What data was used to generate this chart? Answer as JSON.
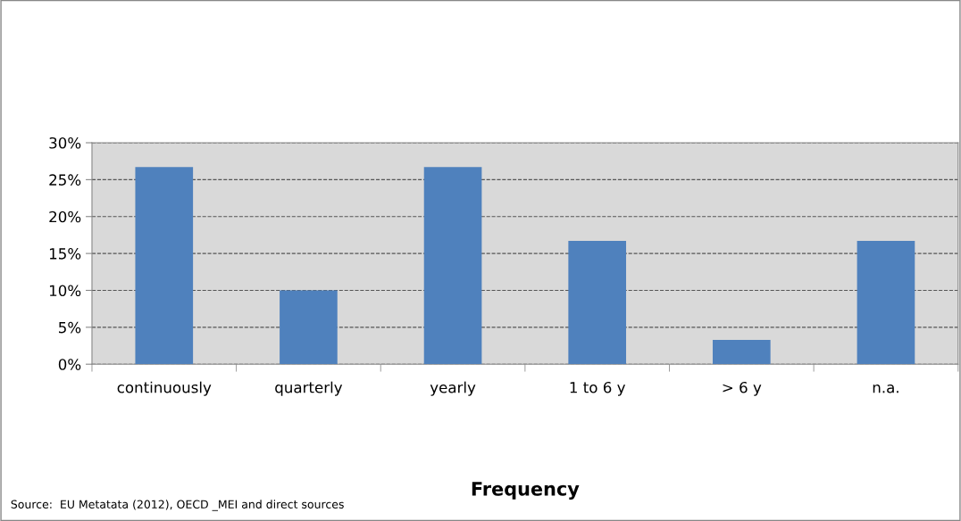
{
  "chart_data": {
    "type": "bar",
    "xlabel": "Frequency",
    "categories": [
      "continuously",
      "quarterly",
      "yearly",
      "1 to 6 y",
      "> 6 y",
      "n.a."
    ],
    "values": [
      26.7,
      10,
      26.7,
      16.7,
      3.3,
      16.7
    ],
    "color": "#4f81bd",
    "ylim": [
      0,
      30
    ],
    "yticks": [
      {
        "value": 0,
        "label": "0%"
      },
      {
        "value": 5,
        "label": "5%"
      },
      {
        "value": 10,
        "label": "10%"
      },
      {
        "value": 15,
        "label": "15%"
      },
      {
        "value": 20,
        "label": "20%"
      },
      {
        "value": 25,
        "label": "25%"
      },
      {
        "value": 30,
        "label": "30%"
      }
    ],
    "grid": "y",
    "annotations": [
      "Source:  EU Metatata (2012), OECD _MEI and direct sources"
    ]
  }
}
